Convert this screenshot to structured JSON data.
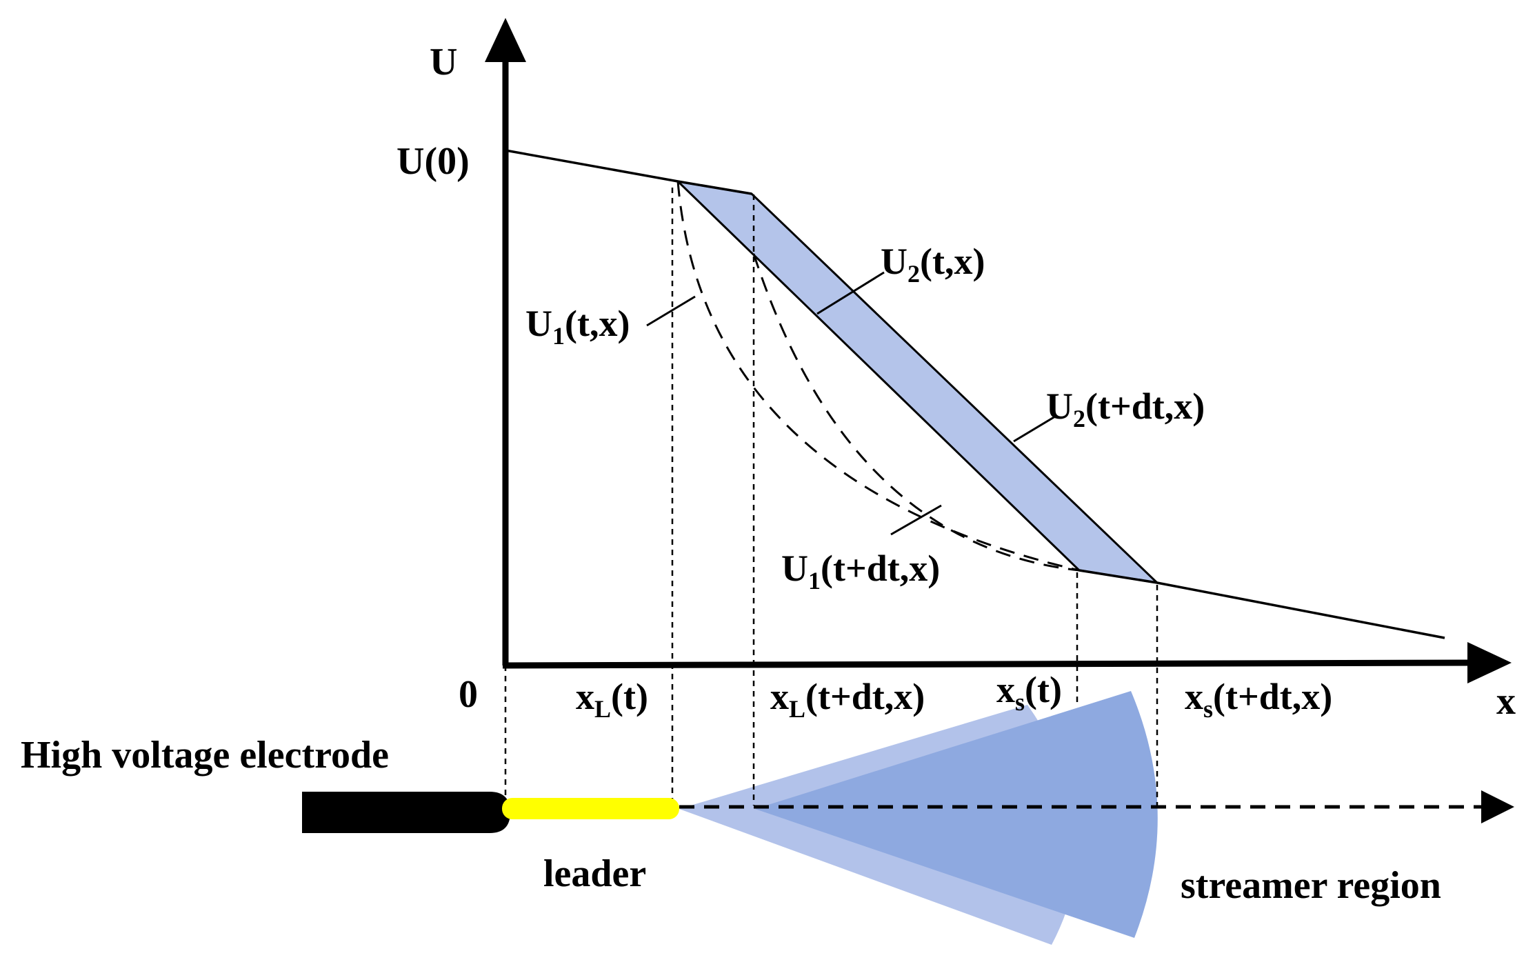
{
  "axes": {
    "y_label": "U",
    "x_label": "x",
    "origin": "0",
    "u0": "U(0)"
  },
  "curves": {
    "u1_t": {
      "main": "U",
      "sub": "1",
      "args": "(t,x)"
    },
    "u2_t": {
      "main": "U",
      "sub": "2",
      "args": "(t,x)"
    },
    "u2_tdt": {
      "main": "U",
      "sub": "2",
      "args": "(t+dt,x)"
    },
    "u1_tdt": {
      "main": "U",
      "sub": "1",
      "args": "(t+dt,x)"
    }
  },
  "ticks": {
    "xl_t": {
      "main": "x",
      "sub": "L",
      "args": "(t)"
    },
    "xl_tdt": {
      "main": "x",
      "sub": "L",
      "args": "(t+dt,x)"
    },
    "xs_t": {
      "main": "x",
      "sub": "s",
      "args": "(t)"
    },
    "xs_tdt": {
      "main": "x",
      "sub": "s",
      "args": "(t+dt,x)"
    }
  },
  "bottom": {
    "electrode": "High voltage electrode",
    "leader": "leader",
    "streamer": "streamer region"
  },
  "colors": {
    "band_fill": "#b4c4ea",
    "streamer_light": "#b2c2ea",
    "streamer_dark": "#8ea9e0",
    "leader": "#ffff00",
    "electrode": "#000000"
  }
}
